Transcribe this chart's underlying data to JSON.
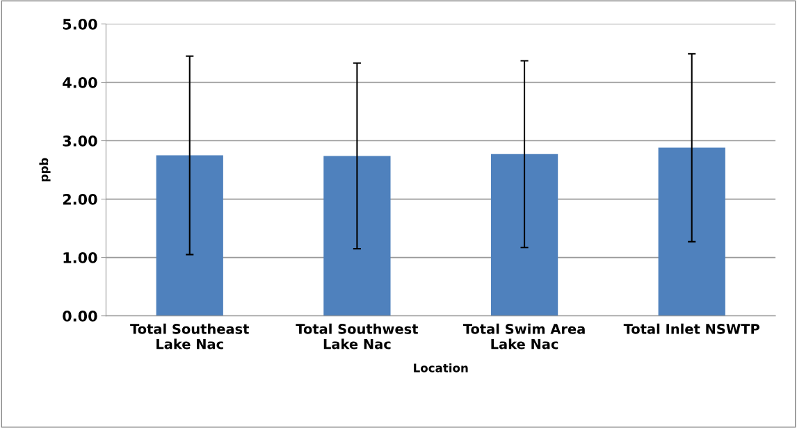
{
  "chart_data": {
    "type": "bar",
    "xlabel": "Location",
    "ylabel": "ppb",
    "categories": [
      "Total Southeast\nLake Nac",
      "Total Southwest\nLake Nac",
      "Total Swim Area\nLake Nac",
      "Total Inlet NSWTP"
    ],
    "values": [
      2.75,
      2.74,
      2.77,
      2.88
    ],
    "errors": [
      1.7,
      1.59,
      1.6,
      1.61
    ],
    "color": "#4f81bd",
    "ylim": [
      0,
      5
    ],
    "yticks": [
      {
        "value": 0,
        "label": "0.00"
      },
      {
        "value": 1,
        "label": "1.00"
      },
      {
        "value": 2,
        "label": "2.00"
      },
      {
        "value": 3,
        "label": "3.00"
      },
      {
        "value": 4,
        "label": "4.00"
      },
      {
        "value": 5,
        "label": "5.00"
      }
    ],
    "grid": "y",
    "legend": false
  }
}
